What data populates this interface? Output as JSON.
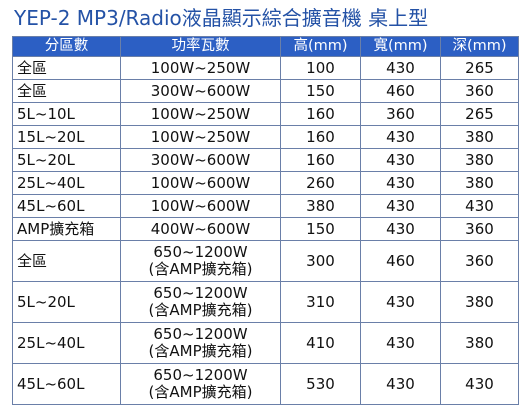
{
  "title": "YEP-2  MP3/Radio液晶顯示綜合擴音機 桌上型",
  "headers": [
    "分區數",
    "功率瓦數",
    "高(mm)",
    "寬(mm)",
    "深(mm)"
  ],
  "rows": [
    {
      "zone": "全區",
      "power": "100W~250W",
      "power2": "",
      "height": "100",
      "width": "430",
      "depth": "265"
    },
    {
      "zone": "全區",
      "power": "300W~600W",
      "power2": "",
      "height": "150",
      "width": "460",
      "depth": "360"
    },
    {
      "zone": "5L~10L",
      "power": "100W~250W",
      "power2": "",
      "height": "160",
      "width": "360",
      "depth": "265"
    },
    {
      "zone": "15L~20L",
      "power": "100W~250W",
      "power2": "",
      "height": "160",
      "width": "430",
      "depth": "380"
    },
    {
      "zone": "5L~20L",
      "power": "300W~600W",
      "power2": "",
      "height": "160",
      "width": "430",
      "depth": "380"
    },
    {
      "zone": "25L~40L",
      "power": "100W~600W",
      "power2": "",
      "height": "260",
      "width": "430",
      "depth": "380"
    },
    {
      "zone": "45L~60L",
      "power": "100W~600W",
      "power2": "",
      "height": "380",
      "width": "430",
      "depth": "430"
    },
    {
      "zone": "AMP擴充箱",
      "power": "400W~600W",
      "power2": "",
      "height": "150",
      "width": "430",
      "depth": "360"
    },
    {
      "zone": "全區",
      "power": "650~1200W",
      "power2": "(含AMP擴充箱)",
      "height": "300",
      "width": "460",
      "depth": "360"
    },
    {
      "zone": "5L~20L",
      "power": "650~1200W",
      "power2": "(含AMP擴充箱)",
      "height": "310",
      "width": "430",
      "depth": "380"
    },
    {
      "zone": "25L~40L",
      "power": "650~1200W",
      "power2": "(含AMP擴充箱)",
      "height": "410",
      "width": "430",
      "depth": "380"
    },
    {
      "zone": "45L~60L",
      "power": "650~1200W",
      "power2": "(含AMP擴充箱)",
      "height": "530",
      "width": "430",
      "depth": "430"
    }
  ]
}
